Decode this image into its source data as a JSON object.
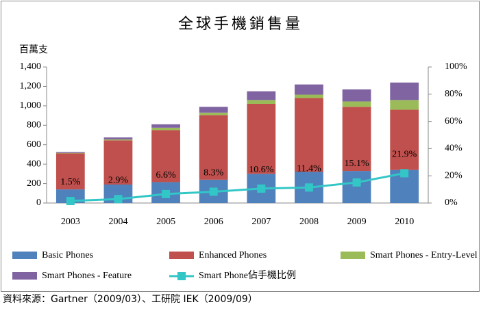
{
  "chart_data": {
    "type": "bar",
    "stacked": true,
    "title": "全球手機銷售量",
    "y_label": "百萬支",
    "source": "資料來源：Gartner（2009/03）、工研院 IEK（2009/09）",
    "categories": [
      "2003",
      "2004",
      "2005",
      "2006",
      "2007",
      "2008",
      "2009",
      "2010"
    ],
    "series": [
      {
        "name": "Basic Phones",
        "color": "#4f81bd",
        "values": [
          140,
          190,
          215,
          240,
          300,
          320,
          330,
          340
        ]
      },
      {
        "name": "Enhanced Phones",
        "color": "#c0504d",
        "values": [
          370,
          455,
          535,
          665,
          720,
          760,
          660,
          620
        ]
      },
      {
        "name": "Smart Phones - Entry-Level",
        "color": "#9bbb59",
        "values": [
          5,
          10,
          25,
          25,
          40,
          35,
          55,
          100
        ]
      },
      {
        "name": "Smart Phones - Feature",
        "color": "#8064a2",
        "values": [
          10,
          20,
          35,
          60,
          90,
          105,
          125,
          180
        ]
      },
      {
        "name": "Smart Phone佔手機比例",
        "type": "line",
        "axis": "y2",
        "color": "#33c6c6",
        "values": [
          1.5,
          2.9,
          6.6,
          8.3,
          10.6,
          11.4,
          15.1,
          21.9
        ],
        "value_labels": [
          "1.5%",
          "2.9%",
          "6.6%",
          "8.3%",
          "10.6%",
          "11.4%",
          "15.1%",
          "21.9%"
        ]
      }
    ],
    "ylim": [
      0,
      1400
    ],
    "yticks": [
      0,
      200,
      400,
      600,
      800,
      {
        "value": 1000,
        "label": "1,000"
      },
      {
        "value": 1200,
        "label": "1,200"
      },
      {
        "value": 1400,
        "label": "1,400"
      }
    ],
    "y2lim": [
      0,
      100
    ],
    "y2ticks": [
      {
        "value": 0,
        "label": "0%"
      },
      {
        "value": 20,
        "label": "20%"
      },
      {
        "value": 40,
        "label": "40%"
      },
      {
        "value": 60,
        "label": "60%"
      },
      {
        "value": 80,
        "label": "80%"
      },
      {
        "value": 100,
        "label": "100%"
      }
    ],
    "grid": false,
    "legend": "bottom"
  }
}
